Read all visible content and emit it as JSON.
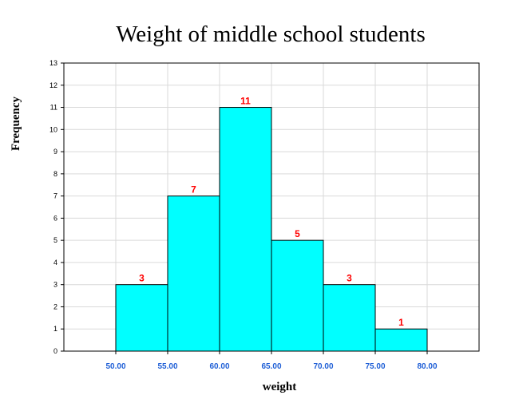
{
  "chart_data": {
    "type": "bar",
    "title": "Weight of middle school students",
    "xlabel": "weight",
    "ylabel": "Frequency",
    "bins": [
      {
        "from": 50,
        "to": 55,
        "value": 3
      },
      {
        "from": 55,
        "to": 60,
        "value": 7
      },
      {
        "from": 60,
        "to": 65,
        "value": 11
      },
      {
        "from": 65,
        "to": 70,
        "value": 5
      },
      {
        "from": 70,
        "to": 75,
        "value": 3
      },
      {
        "from": 75,
        "to": 80,
        "value": 1
      }
    ],
    "xlim": [
      45,
      85
    ],
    "ylim": [
      0,
      13
    ],
    "x_ticks": [
      "50.00",
      "55.00",
      "60.00",
      "65.00",
      "70.00",
      "75.00",
      "80.00"
    ],
    "x_tick_values": [
      50,
      55,
      60,
      65,
      70,
      75,
      80
    ],
    "y_ticks": [
      0,
      1,
      2,
      3,
      4,
      5,
      6,
      7,
      8,
      9,
      10,
      11,
      12,
      13
    ],
    "grid": true,
    "legend": "none",
    "bar_color": "#00FFFF",
    "bar_edge_color": "#000000",
    "data_label_color": "#FF0000",
    "x_tick_color": "#1F5FD6"
  }
}
